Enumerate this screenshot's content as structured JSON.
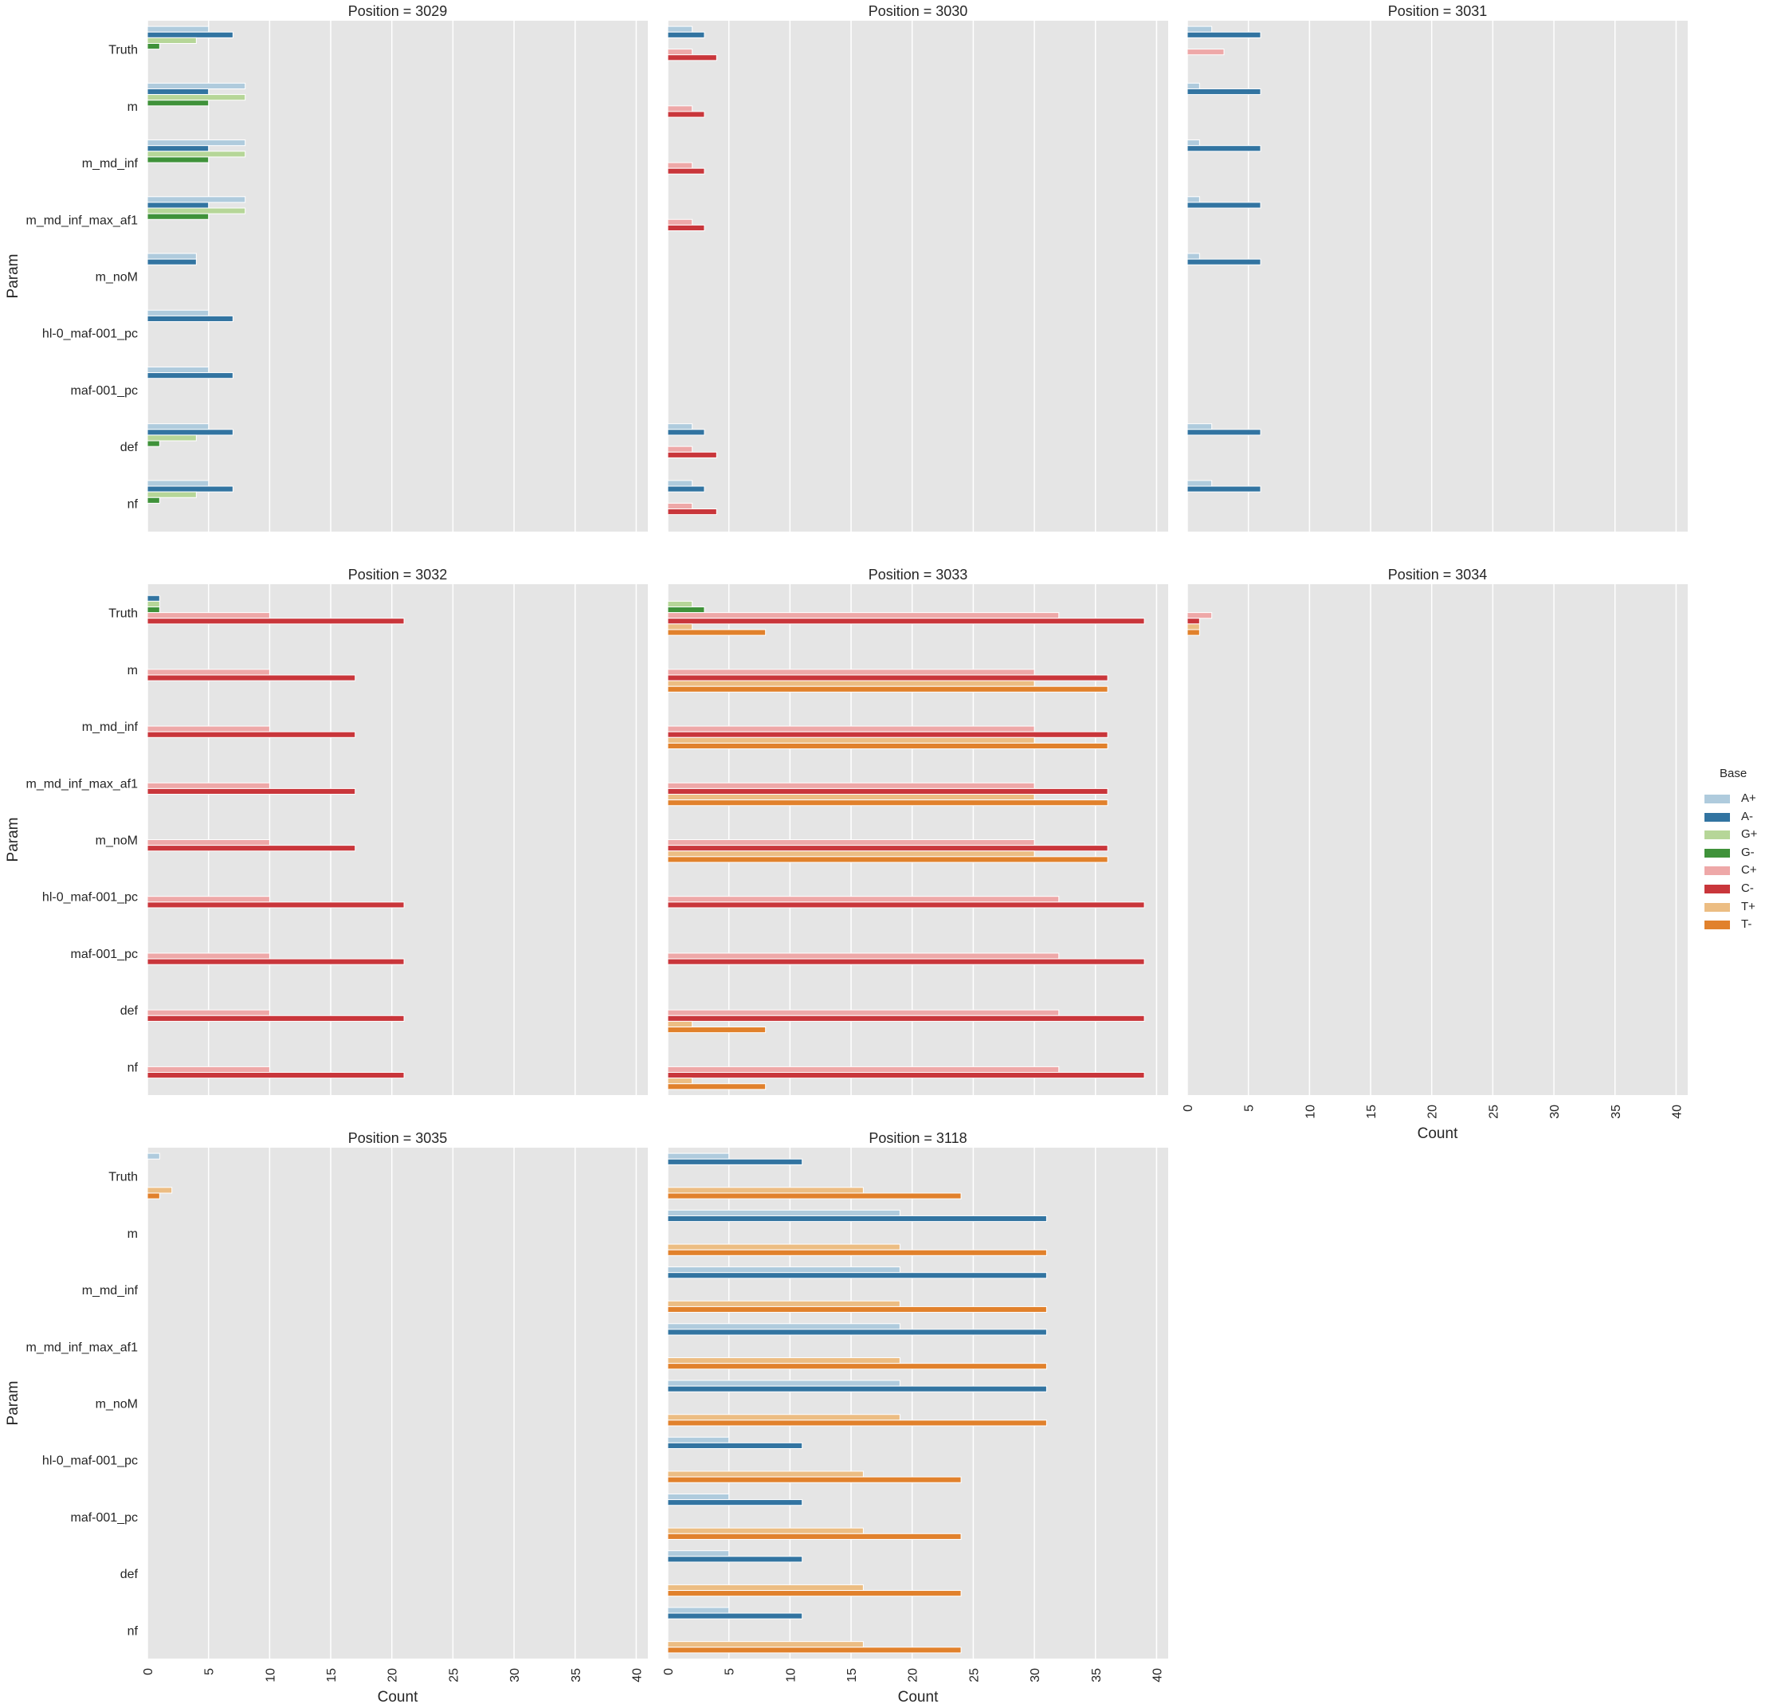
{
  "chart_data": {
    "type": "bar",
    "orientation": "horizontal",
    "facet_variable": "Position",
    "title_template": "Position = {}",
    "xlabel": "Count",
    "ylabel": "Param",
    "xlim": [
      0,
      40.95
    ],
    "xticks": [
      0,
      5,
      10,
      15,
      20,
      25,
      30,
      35,
      40
    ],
    "grid": true,
    "legend": {
      "title": "Base",
      "placement": "right",
      "entries": [
        "A+",
        "A-",
        "G+",
        "G-",
        "C+",
        "C-",
        "T+",
        "T-"
      ]
    },
    "hue_order": [
      "A+",
      "A-",
      "G+",
      "G-",
      "C+",
      "C-",
      "T+",
      "T-"
    ],
    "colors": {
      "A+": "#afcbdd",
      "A-": "#3274a1",
      "G+": "#b6d698",
      "G-": "#3f923a",
      "C+": "#eea8a8",
      "C-": "#c9363b",
      "T+": "#ecbd83",
      "T-": "#e1812c"
    },
    "categories": [
      "Truth",
      "m",
      "m_md_inf",
      "m_md_inf_max_af1",
      "m_noM",
      "hl-0_maf-001_pc",
      "maf-001_pc",
      "def",
      "nf"
    ],
    "facets": [
      {
        "position": "3029",
        "title": "Position = 3029",
        "values": {
          "Truth": [
            5,
            7,
            4,
            1,
            0,
            0,
            0,
            0
          ],
          "m": [
            8,
            5,
            8,
            5,
            0,
            0,
            0,
            0
          ],
          "m_md_inf": [
            8,
            5,
            8,
            5,
            0,
            0,
            0,
            0
          ],
          "m_md_inf_max_af1": [
            8,
            5,
            8,
            5,
            0,
            0,
            0,
            0
          ],
          "m_noM": [
            4,
            4,
            0,
            0,
            0,
            0,
            0,
            0
          ],
          "hl-0_maf-001_pc": [
            5,
            7,
            0,
            0,
            0,
            0,
            0,
            0
          ],
          "maf-001_pc": [
            5,
            7,
            0,
            0,
            0,
            0,
            0,
            0
          ],
          "def": [
            5,
            7,
            4,
            1,
            0,
            0,
            0,
            0
          ],
          "nf": [
            5,
            7,
            4,
            1,
            0,
            0,
            0,
            0
          ]
        }
      },
      {
        "position": "3030",
        "title": "Position = 3030",
        "values": {
          "Truth": [
            2,
            3,
            0,
            0,
            2,
            4,
            0,
            0
          ],
          "m": [
            0,
            0,
            0,
            0,
            2,
            3,
            0,
            0
          ],
          "m_md_inf": [
            0,
            0,
            0,
            0,
            2,
            3,
            0,
            0
          ],
          "m_md_inf_max_af1": [
            0,
            0,
            0,
            0,
            2,
            3,
            0,
            0
          ],
          "m_noM": [
            0,
            0,
            0,
            0,
            0,
            0,
            0,
            0
          ],
          "hl-0_maf-001_pc": [
            0,
            0,
            0,
            0,
            0,
            0,
            0,
            0
          ],
          "maf-001_pc": [
            0,
            0,
            0,
            0,
            0,
            0,
            0,
            0
          ],
          "def": [
            2,
            3,
            0,
            0,
            2,
            4,
            0,
            0
          ],
          "nf": [
            2,
            3,
            0,
            0,
            2,
            4,
            0,
            0
          ]
        }
      },
      {
        "position": "3031",
        "title": "Position = 3031",
        "values": {
          "Truth": [
            2,
            6,
            0,
            0,
            3,
            0,
            0,
            0
          ],
          "m": [
            1,
            6,
            0,
            0,
            0,
            0,
            0,
            0
          ],
          "m_md_inf": [
            1,
            6,
            0,
            0,
            0,
            0,
            0,
            0
          ],
          "m_md_inf_max_af1": [
            1,
            6,
            0,
            0,
            0,
            0,
            0,
            0
          ],
          "m_noM": [
            1,
            6,
            0,
            0,
            0,
            0,
            0,
            0
          ],
          "hl-0_maf-001_pc": [
            0,
            0,
            0,
            0,
            0,
            0,
            0,
            0
          ],
          "maf-001_pc": [
            0,
            0,
            0,
            0,
            0,
            0,
            0,
            0
          ],
          "def": [
            2,
            6,
            0,
            0,
            0,
            0,
            0,
            0
          ],
          "nf": [
            2,
            6,
            0,
            0,
            0,
            0,
            0,
            0
          ]
        }
      },
      {
        "position": "3032",
        "title": "Position = 3032",
        "values": {
          "Truth": [
            0,
            1,
            1,
            1,
            10,
            21,
            0,
            0
          ],
          "m": [
            0,
            0,
            0,
            0,
            10,
            17,
            0,
            0
          ],
          "m_md_inf": [
            0,
            0,
            0,
            0,
            10,
            17,
            0,
            0
          ],
          "m_md_inf_max_af1": [
            0,
            0,
            0,
            0,
            10,
            17,
            0,
            0
          ],
          "m_noM": [
            0,
            0,
            0,
            0,
            10,
            17,
            0,
            0
          ],
          "hl-0_maf-001_pc": [
            0,
            0,
            0,
            0,
            10,
            21,
            0,
            0
          ],
          "maf-001_pc": [
            0,
            0,
            0,
            0,
            10,
            21,
            0,
            0
          ],
          "def": [
            0,
            0,
            0,
            0,
            10,
            21,
            0,
            0
          ],
          "nf": [
            0,
            0,
            0,
            0,
            10,
            21,
            0,
            0
          ]
        }
      },
      {
        "position": "3033",
        "title": "Position = 3033",
        "values": {
          "Truth": [
            0,
            0,
            2,
            3,
            32,
            39,
            2,
            8
          ],
          "m": [
            0,
            0,
            0,
            0,
            30,
            36,
            30,
            36
          ],
          "m_md_inf": [
            0,
            0,
            0,
            0,
            30,
            36,
            30,
            36
          ],
          "m_md_inf_max_af1": [
            0,
            0,
            0,
            0,
            30,
            36,
            30,
            36
          ],
          "m_noM": [
            0,
            0,
            0,
            0,
            30,
            36,
            30,
            36
          ],
          "hl-0_maf-001_pc": [
            0,
            0,
            0,
            0,
            32,
            39,
            0,
            0
          ],
          "maf-001_pc": [
            0,
            0,
            0,
            0,
            32,
            39,
            0,
            0
          ],
          "def": [
            0,
            0,
            0,
            0,
            32,
            39,
            2,
            8
          ],
          "nf": [
            0,
            0,
            0,
            0,
            32,
            39,
            2,
            8
          ]
        }
      },
      {
        "position": "3034",
        "title": "Position = 3034",
        "values": {
          "Truth": [
            0,
            0,
            0,
            0,
            2,
            1,
            1,
            1
          ],
          "m": [
            0,
            0,
            0,
            0,
            0,
            0,
            0,
            0
          ],
          "m_md_inf": [
            0,
            0,
            0,
            0,
            0,
            0,
            0,
            0
          ],
          "m_md_inf_max_af1": [
            0,
            0,
            0,
            0,
            0,
            0,
            0,
            0
          ],
          "m_noM": [
            0,
            0,
            0,
            0,
            0,
            0,
            0,
            0
          ],
          "hl-0_maf-001_pc": [
            0,
            0,
            0,
            0,
            0,
            0,
            0,
            0
          ],
          "maf-001_pc": [
            0,
            0,
            0,
            0,
            0,
            0,
            0,
            0
          ],
          "def": [
            0,
            0,
            0,
            0,
            0,
            0,
            0,
            0
          ],
          "nf": [
            0,
            0,
            0,
            0,
            0,
            0,
            0,
            0
          ]
        }
      },
      {
        "position": "3035",
        "title": "Position = 3035",
        "values": {
          "Truth": [
            1,
            0,
            0,
            0,
            0,
            0,
            2,
            1
          ],
          "m": [
            0,
            0,
            0,
            0,
            0,
            0,
            0,
            0
          ],
          "m_md_inf": [
            0,
            0,
            0,
            0,
            0,
            0,
            0,
            0
          ],
          "m_md_inf_max_af1": [
            0,
            0,
            0,
            0,
            0,
            0,
            0,
            0
          ],
          "m_noM": [
            0,
            0,
            0,
            0,
            0,
            0,
            0,
            0
          ],
          "hl-0_maf-001_pc": [
            0,
            0,
            0,
            0,
            0,
            0,
            0,
            0
          ],
          "maf-001_pc": [
            0,
            0,
            0,
            0,
            0,
            0,
            0,
            0
          ],
          "def": [
            0,
            0,
            0,
            0,
            0,
            0,
            0,
            0
          ],
          "nf": [
            0,
            0,
            0,
            0,
            0,
            0,
            0,
            0
          ]
        }
      },
      {
        "position": "3118",
        "title": "Position = 3118",
        "values": {
          "Truth": [
            5,
            11,
            0,
            0,
            0,
            0,
            16,
            24
          ],
          "m": [
            19,
            31,
            0,
            0,
            0,
            0,
            19,
            31
          ],
          "m_md_inf": [
            19,
            31,
            0,
            0,
            0,
            0,
            19,
            31
          ],
          "m_md_inf_max_af1": [
            19,
            31,
            0,
            0,
            0,
            0,
            19,
            31
          ],
          "m_noM": [
            19,
            31,
            0,
            0,
            0,
            0,
            19,
            31
          ],
          "hl-0_maf-001_pc": [
            5,
            11,
            0,
            0,
            0,
            0,
            16,
            24
          ],
          "maf-001_pc": [
            5,
            11,
            0,
            0,
            0,
            0,
            16,
            24
          ],
          "def": [
            5,
            11,
            0,
            0,
            0,
            0,
            16,
            24
          ],
          "nf": [
            5,
            11,
            0,
            0,
            0,
            0,
            16,
            24
          ]
        }
      }
    ]
  }
}
